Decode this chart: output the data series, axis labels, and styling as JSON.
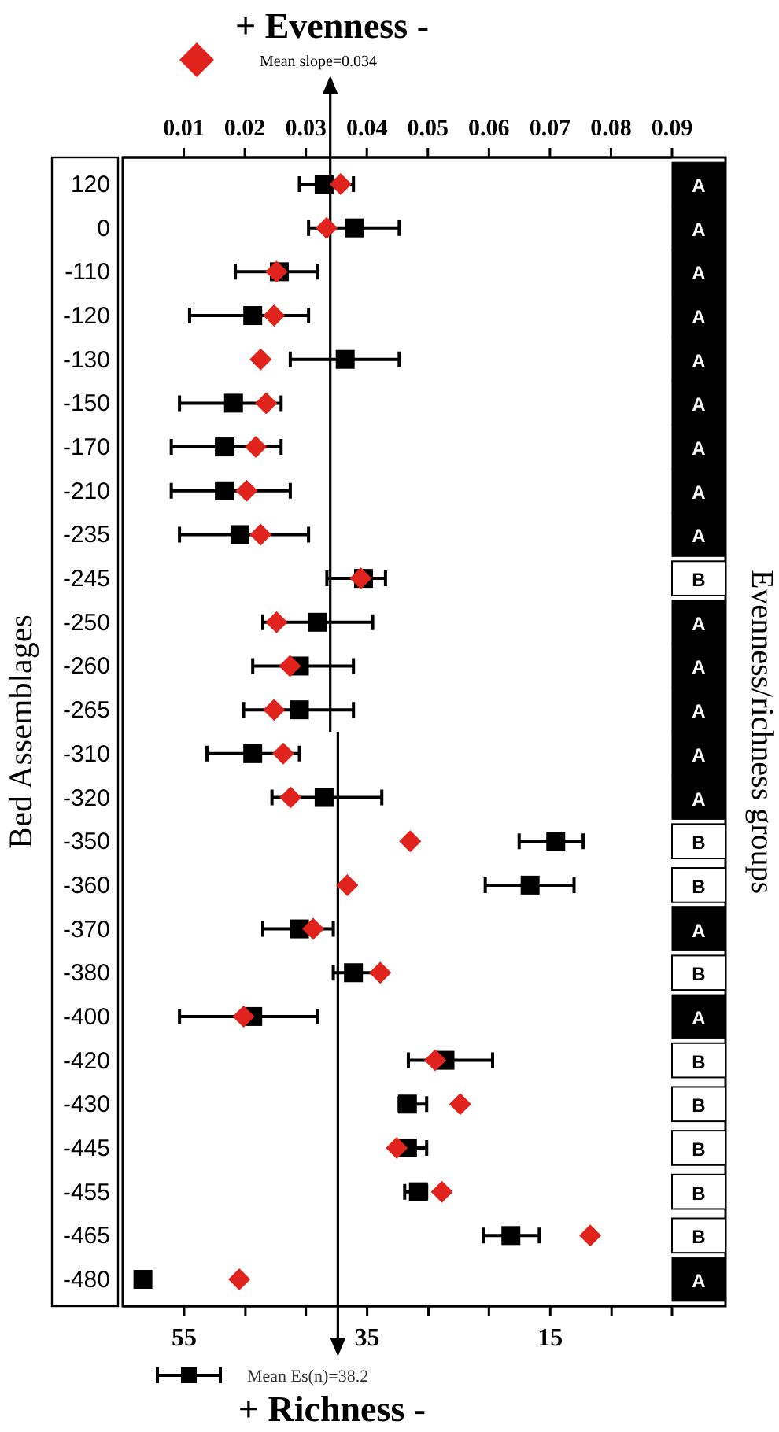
{
  "chart_data": {
    "type": "scatter",
    "orientation": "horizontal",
    "x2label": "+ Evenness -",
    "xlabel": "+ Richness -",
    "ylabel": "Bed Assemblages",
    "y2label": "Evenness/richness groups",
    "categories": [
      "120",
      "0",
      "-110",
      "-120",
      "-130",
      "-150",
      "-170",
      "-210",
      "-235",
      "-245",
      "-250",
      "-260",
      "-265",
      "-310",
      "-320",
      "-350",
      "-360",
      "-370",
      "-380",
      "-400",
      "-420",
      "-430",
      "-445",
      "-455",
      "-465",
      "-480"
    ],
    "y2_categories": [
      "A",
      "A",
      "A",
      "A",
      "A",
      "A",
      "A",
      "A",
      "A",
      "B",
      "A",
      "A",
      "A",
      "A",
      "A",
      "B",
      "B",
      "A",
      "B",
      "A",
      "B",
      "B",
      "B",
      "B",
      "B",
      "A"
    ],
    "xlim": [
      61.7,
      1.7
    ],
    "xticks": [
      55,
      {
        "value": 48.3,
        "label": null
      },
      {
        "value": 41.7,
        "label": null
      },
      35,
      {
        "value": 28.3,
        "label": null
      },
      {
        "value": 21.7,
        "label": null
      },
      15,
      {
        "value": 8.3,
        "label": null
      },
      {
        "value": 1.7,
        "label": null
      }
    ],
    "x2lim": [
      0,
      0.09
    ],
    "x2ticks": [
      0.01,
      0.02,
      0.03,
      0.04,
      0.05,
      0.06,
      0.07,
      0.08,
      0.09
    ],
    "series": [
      {
        "color": "#000000",
        "marker": "square",
        "values": [
          39.7,
          36.4,
          44.6,
          47.5,
          37.4,
          49.6,
          50.6,
          50.6,
          48.9,
          35.4,
          40.4,
          42.4,
          42.4,
          47.5,
          39.7,
          14.4,
          17.2,
          42.4,
          36.5,
          47.5,
          26.5,
          30.6,
          30.6,
          29.4,
          19.3,
          59.5
        ],
        "errors": [
          [
            36.5,
            42.4
          ],
          [
            31.5,
            41.4
          ],
          [
            40.4,
            49.4
          ],
          [
            41.4,
            54.4
          ],
          [
            31.5,
            43.4
          ],
          [
            44.4,
            55.5
          ],
          [
            44.4,
            56.4
          ],
          [
            43.4,
            56.4
          ],
          [
            41.4,
            55.5
          ],
          [
            33.0,
            39.4
          ],
          [
            34.4,
            46.4
          ],
          [
            36.5,
            47.5
          ],
          [
            36.5,
            48.5
          ],
          [
            42.4,
            52.5
          ],
          [
            33.4,
            45.4
          ],
          [
            11.4,
            18.4
          ],
          [
            12.4,
            22.1
          ],
          [
            38.7,
            46.4
          ],
          [
            33.7,
            38.7
          ],
          [
            40.4,
            55.5
          ],
          [
            21.3,
            30.5
          ],
          [
            28.5,
            31.5
          ],
          [
            28.5,
            31.4
          ],
          [
            28.5,
            30.9
          ],
          [
            16.2,
            22.3
          ],
          null
        ]
      },
      {
        "color": "#e0231c",
        "marker": "diamond",
        "axis": "x2",
        "values": [
          0.0357,
          0.0334,
          0.0252,
          0.0248,
          0.0226,
          0.0235,
          0.0218,
          0.0203,
          0.0226,
          0.039,
          0.0252,
          0.0274,
          0.0248,
          0.0263,
          0.0275,
          0.0471,
          0.0368,
          0.0312,
          0.0422,
          0.0198,
          0.0512,
          0.0553,
          0.0449,
          0.0523,
          0.0766,
          0.0191
        ]
      }
    ],
    "ref_lines": [
      {
        "axis": "x2",
        "value": 0.034,
        "label": "Mean slope=0.034",
        "color": "#000000"
      },
      {
        "axis": "x",
        "value": 38.2,
        "label": "Mean Es(n)=38.2",
        "color": "#000000"
      }
    ]
  }
}
